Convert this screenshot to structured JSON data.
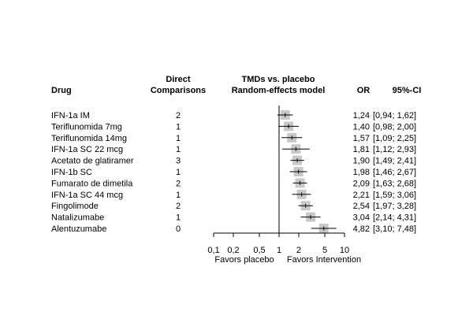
{
  "headers": {
    "drug": "Drug",
    "direct_line1": "Direct",
    "direct_line2": "Comparisons",
    "model_line1": "TMDs vs. placebo",
    "model_line2": "Random-effects model",
    "or": "OR",
    "ci": "95%-CI"
  },
  "axis_labels": {
    "left": "Favors placebo",
    "right": "Favors Intervention"
  },
  "chart_data": {
    "type": "forest",
    "x_scale": "log",
    "xlim": [
      0.1,
      10
    ],
    "reference_line": 1,
    "x_ticks": [
      0.1,
      0.2,
      0.5,
      1,
      2,
      5,
      10
    ],
    "x_tick_labels": [
      "0,1",
      "0,2",
      "0,5",
      "1",
      "2",
      "5",
      "10"
    ],
    "rows": [
      {
        "drug": "IFN-1a IM",
        "comparisons": "2",
        "or": 1.24,
        "lower": 0.94,
        "upper": 1.62,
        "or_text": "1,24",
        "ci_text": "[0,94; 1,62]"
      },
      {
        "drug": "Teriflunomida 7mg",
        "comparisons": "1",
        "or": 1.4,
        "lower": 0.98,
        "upper": 2.0,
        "or_text": "1,40",
        "ci_text": "[0,98; 2,00]"
      },
      {
        "drug": "Teriflunomida 14mg",
        "comparisons": "1",
        "or": 1.57,
        "lower": 1.09,
        "upper": 2.25,
        "or_text": "1,57",
        "ci_text": "[1,09; 2,25]"
      },
      {
        "drug": "IFN-1a SC 22 mcg",
        "comparisons": "1",
        "or": 1.81,
        "lower": 1.12,
        "upper": 2.93,
        "or_text": "1,81",
        "ci_text": "[1,12; 2,93]"
      },
      {
        "drug": "Acetato de glatiramer",
        "comparisons": "3",
        "or": 1.9,
        "lower": 1.49,
        "upper": 2.41,
        "or_text": "1,90",
        "ci_text": "[1,49; 2,41]"
      },
      {
        "drug": "IFN-1b SC",
        "comparisons": "1",
        "or": 1.98,
        "lower": 1.46,
        "upper": 2.67,
        "or_text": "1,98",
        "ci_text": "[1,46; 2,67]"
      },
      {
        "drug": "Fumarato de dimetila",
        "comparisons": "2",
        "or": 2.09,
        "lower": 1.63,
        "upper": 2.68,
        "or_text": "2,09",
        "ci_text": "[1,63; 2,68]"
      },
      {
        "drug": "IFN-1a SC 44 mcg",
        "comparisons": "1",
        "or": 2.21,
        "lower": 1.59,
        "upper": 3.06,
        "or_text": "2,21",
        "ci_text": "[1,59; 3,06]"
      },
      {
        "drug": "Fingolimode",
        "comparisons": "2",
        "or": 2.54,
        "lower": 1.97,
        "upper": 3.28,
        "or_text": "2,54",
        "ci_text": "[1,97; 3,28]"
      },
      {
        "drug": "Natalizumabe",
        "comparisons": "1",
        "or": 3.04,
        "lower": 2.14,
        "upper": 4.31,
        "or_text": "3,04",
        "ci_text": "[2,14; 4,31]"
      },
      {
        "drug": "Alentuzumabe",
        "comparisons": "0",
        "or": 4.82,
        "lower": 3.1,
        "upper": 7.48,
        "or_text": "4,82",
        "ci_text": "[3,10; 7,48]"
      }
    ]
  },
  "colors": {
    "box": "#c8c8c8",
    "line": "#000000"
  }
}
